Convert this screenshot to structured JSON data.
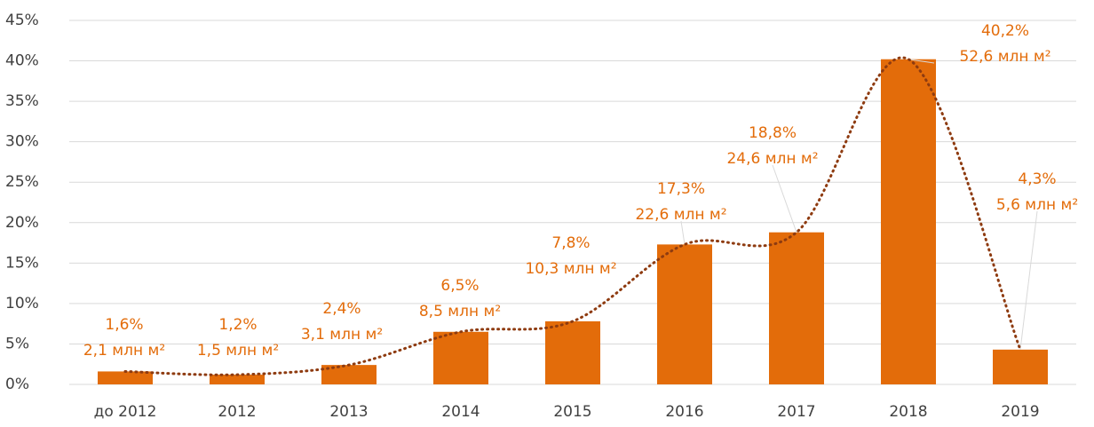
{
  "chart_data": {
    "type": "bar",
    "categories": [
      "до 2012",
      "2012",
      "2013",
      "2014",
      "2015",
      "2016",
      "2017",
      "2018",
      "2019"
    ],
    "values": [
      1.6,
      1.2,
      2.4,
      6.5,
      7.8,
      17.3,
      18.8,
      40.2,
      4.3
    ],
    "value_labels": [
      "1,6%",
      "1,2%",
      "2,4%",
      "6,5%",
      "7,8%",
      "17,3%",
      "18,8%",
      "40,2%",
      "4,3%"
    ],
    "area_labels": [
      "2,1 млн м²",
      "1,5 млн м²",
      "3,1 млн м²",
      "8,5 млн м²",
      "10,3 млн м²",
      "22,6 млн м²",
      "24,6 млн м²",
      "52,6 млн м²",
      "5,6 млн м²"
    ],
    "color": "#e36c0a",
    "trendline_color": "#8e3b10",
    "ylim": [
      0,
      45
    ],
    "yticks": [
      {
        "value": 0,
        "label": "0%"
      },
      {
        "value": 5,
        "label": "5%"
      },
      {
        "value": 10,
        "label": "10%"
      },
      {
        "value": 15,
        "label": "15%"
      },
      {
        "value": 20,
        "label": "20%"
      },
      {
        "value": 25,
        "label": "25%"
      },
      {
        "value": 30,
        "label": "30%"
      },
      {
        "value": 35,
        "label": "35%"
      },
      {
        "value": 40,
        "label": "40%"
      },
      {
        "value": 45,
        "label": "45%"
      }
    ],
    "grid": true
  }
}
